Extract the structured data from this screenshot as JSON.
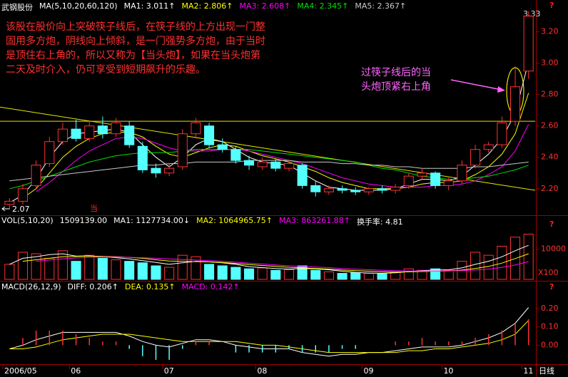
{
  "help": "?",
  "chart_data": [
    {
      "type": "candlestick",
      "title": "武钢股份",
      "subtitle": "MA(5,10,20,60,120)",
      "up_color": "#ff3232",
      "down_color": "#54ffff",
      "categories": [
        "2006/05",
        null,
        null,
        null,
        null,
        "06",
        null,
        null,
        null,
        null,
        null,
        null,
        "07",
        null,
        null,
        null,
        null,
        null,
        null,
        "08",
        null,
        null,
        null,
        null,
        null,
        null,
        null,
        "09",
        null,
        null,
        null,
        null,
        null,
        "10",
        null,
        null,
        null,
        null,
        null,
        "11"
      ],
      "open": [
        2.1,
        2.12,
        2.22,
        2.36,
        2.5,
        2.58,
        2.52,
        2.6,
        2.55,
        2.6,
        2.47,
        2.33,
        2.3,
        2.34,
        2.55,
        2.6,
        2.48,
        2.45,
        2.38,
        2.34,
        2.37,
        2.33,
        2.35,
        2.22,
        2.18,
        2.2,
        2.19,
        2.18,
        2.2,
        2.19,
        2.22,
        2.28,
        2.3,
        2.22,
        2.25,
        2.35,
        2.45,
        2.48,
        2.63,
        2.95
      ],
      "high": [
        2.14,
        2.23,
        2.38,
        2.53,
        2.62,
        2.64,
        2.63,
        2.66,
        2.65,
        2.63,
        2.5,
        2.36,
        2.36,
        2.58,
        2.65,
        2.62,
        2.52,
        2.47,
        2.41,
        2.4,
        2.39,
        2.38,
        2.36,
        2.25,
        2.22,
        2.22,
        2.21,
        2.21,
        2.22,
        2.23,
        2.3,
        2.33,
        2.31,
        2.27,
        2.38,
        2.48,
        2.5,
        2.66,
        2.98,
        3.33
      ],
      "low": [
        2.07,
        2.1,
        2.2,
        2.34,
        2.48,
        2.5,
        2.5,
        2.52,
        2.53,
        2.46,
        2.3,
        2.27,
        2.28,
        2.32,
        2.52,
        2.46,
        2.43,
        2.36,
        2.32,
        2.32,
        2.31,
        2.31,
        2.2,
        2.15,
        2.16,
        2.17,
        2.16,
        2.16,
        2.17,
        2.17,
        2.2,
        2.26,
        2.2,
        2.19,
        2.23,
        2.33,
        2.43,
        2.46,
        2.6,
        2.9
      ],
      "close": [
        2.12,
        2.2,
        2.35,
        2.5,
        2.58,
        2.52,
        2.6,
        2.55,
        2.62,
        2.48,
        2.32,
        2.3,
        2.33,
        2.55,
        2.62,
        2.48,
        2.45,
        2.38,
        2.35,
        2.37,
        2.33,
        2.36,
        2.22,
        2.18,
        2.2,
        2.19,
        2.18,
        2.2,
        2.19,
        2.21,
        2.28,
        2.3,
        2.22,
        2.25,
        2.35,
        2.45,
        2.48,
        2.62,
        2.85,
        3.3
      ],
      "series": [
        {
          "name": "MA1: 3.011↑",
          "color": "#ffffff",
          "values": [
            2.11,
            2.16,
            2.26,
            2.4,
            2.5,
            2.55,
            2.56,
            2.57,
            2.58,
            2.56,
            2.48,
            2.4,
            2.34,
            2.4,
            2.48,
            2.52,
            2.5,
            2.45,
            2.4,
            2.37,
            2.36,
            2.35,
            2.3,
            2.25,
            2.21,
            2.2,
            2.19,
            2.19,
            2.19,
            2.2,
            2.23,
            2.26,
            2.26,
            2.25,
            2.28,
            2.35,
            2.42,
            2.52,
            2.68,
            3.01
          ]
        },
        {
          "name": "MA2: 2.806↑",
          "color": "#ffff00",
          "values": [
            null,
            2.14,
            2.2,
            2.3,
            2.4,
            2.47,
            2.52,
            2.55,
            2.56,
            2.56,
            2.53,
            2.47,
            2.42,
            2.4,
            2.43,
            2.46,
            2.48,
            2.47,
            2.44,
            2.41,
            2.39,
            2.37,
            2.34,
            2.31,
            2.27,
            2.24,
            2.22,
            2.2,
            2.2,
            2.2,
            2.21,
            2.23,
            2.24,
            2.24,
            2.25,
            2.29,
            2.34,
            2.42,
            2.55,
            2.81
          ]
        },
        {
          "name": "MA3: 2.608↑",
          "color": "#ff00ff",
          "values": [
            null,
            null,
            2.18,
            2.24,
            2.31,
            2.38,
            2.44,
            2.48,
            2.52,
            2.53,
            2.52,
            2.49,
            2.46,
            2.44,
            2.44,
            2.44,
            2.45,
            2.45,
            2.44,
            2.42,
            2.4,
            2.38,
            2.36,
            2.33,
            2.3,
            2.27,
            2.25,
            2.23,
            2.22,
            2.21,
            2.21,
            2.21,
            2.22,
            2.22,
            2.23,
            2.25,
            2.29,
            2.34,
            2.44,
            2.61
          ]
        },
        {
          "name": "MA4: 2.345↑",
          "color": "#00e000",
          "values": [
            2.2,
            2.22,
            2.25,
            2.28,
            2.31,
            2.34,
            2.37,
            2.39,
            2.41,
            2.42,
            2.43,
            2.43,
            2.43,
            2.44,
            2.45,
            2.45,
            2.45,
            2.45,
            2.45,
            2.44,
            2.43,
            2.42,
            2.41,
            2.4,
            2.39,
            2.38,
            2.37,
            2.35,
            2.33,
            2.32,
            2.3,
            2.28,
            2.27,
            2.26,
            2.26,
            2.27,
            2.28,
            2.3,
            2.32,
            2.35
          ]
        },
        {
          "name": "MA5: 2.367↑",
          "color": "#c8c8c8",
          "values": [
            2.25,
            2.26,
            2.27,
            2.28,
            2.29,
            2.3,
            2.31,
            2.32,
            2.33,
            2.34,
            2.35,
            2.35,
            2.36,
            2.36,
            2.37,
            2.37,
            2.37,
            2.37,
            2.38,
            2.38,
            2.38,
            2.38,
            2.37,
            2.37,
            2.37,
            2.36,
            2.36,
            2.35,
            2.35,
            2.34,
            2.34,
            2.33,
            2.33,
            2.33,
            2.33,
            2.34,
            2.34,
            2.35,
            2.36,
            2.37
          ]
        }
      ],
      "trendlines": [
        {
          "color": "#e6e600",
          "values": [
            2.72,
            2.19
          ]
        },
        {
          "color": "#e6e600",
          "values": [
            2.63,
            2.63
          ]
        }
      ],
      "ylim": [
        2.04,
        3.38
      ],
      "yticks": [
        {
          "value": 2.2,
          "label": "2.20"
        },
        {
          "value": 2.4,
          "label": "2.40"
        },
        {
          "value": 2.6,
          "label": "2.60"
        },
        {
          "value": 2.8,
          "label": "2.80"
        },
        {
          "value": 3.0,
          "label": "3.00"
        },
        {
          "value": 3.2,
          "label": "3.20"
        }
      ],
      "high_label": 3.33,
      "low_label": 2.07,
      "signal_label": "当",
      "annotation": [
        "该股在股价向上突破筷子线后，在筷子线的上方出现一门整",
        "固用多方炮，阴线向上倾斜，是一门强势多方炮，由于当时",
        "是顶住右上角的，所以又称为【当头炮】，如果在当头炮第",
        "二天及时介入，仍可享受到短期飙升的乐趣。"
      ],
      "callout": [
        "过筷子线后的当",
        "头炮顶紧右上角"
      ]
    },
    {
      "type": "bar",
      "title": "VOL(5,10,20)",
      "total": "1509139.00",
      "turnover": "换手率: 4.81",
      "unit": "X100",
      "values": [
        5000,
        9000,
        8500,
        7000,
        9500,
        6000,
        8000,
        7000,
        6500,
        6000,
        5500,
        4500,
        4000,
        8000,
        7500,
        5000,
        4500,
        4000,
        3500,
        3800,
        3000,
        3200,
        4500,
        3000,
        2500,
        2000,
        2200,
        2000,
        1800,
        2500,
        3500,
        3000,
        3500,
        3000,
        6000,
        9000,
        8000,
        11000,
        14000,
        15000
      ],
      "series": [
        {
          "name": "MA1: 1127734.00↓",
          "color": "#ffffff",
          "values": [
            5000,
            7000,
            7500,
            8200,
            8500,
            7700,
            7800,
            7500,
            7200,
            6800,
            6200,
            5600,
            5000,
            5500,
            6000,
            5800,
            5500,
            5000,
            4200,
            3900,
            3600,
            3400,
            3600,
            3500,
            3200,
            2700,
            2300,
            2100,
            2000,
            2200,
            2600,
            2900,
            3100,
            3200,
            3800,
            5000,
            6000,
            7500,
            9500,
            11300
          ]
        },
        {
          "name": "MA2: 1064965.75↑",
          "color": "#ffff00",
          "values": [
            null,
            6000,
            6500,
            7000,
            7500,
            7600,
            7700,
            7600,
            7500,
            7300,
            7000,
            6500,
            6100,
            6000,
            5900,
            5800,
            5600,
            5300,
            4900,
            4600,
            4300,
            4000,
            3800,
            3600,
            3400,
            3100,
            2900,
            2700,
            2500,
            2400,
            2500,
            2600,
            2700,
            2800,
            3100,
            3600,
            4300,
            5400,
            6900,
            8500
          ]
        },
        {
          "name": "MA3: 863261.88↑",
          "color": "#ff00ff",
          "values": [
            null,
            null,
            6000,
            6400,
            6800,
            7100,
            7300,
            7400,
            7400,
            7300,
            7200,
            7000,
            6800,
            6600,
            6400,
            6200,
            6000,
            5700,
            5400,
            5100,
            4800,
            4500,
            4300,
            4100,
            3900,
            3600,
            3400,
            3200,
            3000,
            2900,
            2800,
            2800,
            2800,
            2800,
            2900,
            3100,
            3400,
            4000,
            4800,
            5900
          ]
        }
      ],
      "ylim": [
        0,
        17500
      ],
      "yticks": [
        10000
      ]
    },
    {
      "type": "macd",
      "title": "MACD(26,12,9)",
      "x_label": "日线",
      "series": [
        {
          "name": "DIFF: 0.206↑",
          "color": "#ffffff",
          "values": [
            -0.02,
            0.0,
            0.03,
            0.05,
            0.07,
            0.07,
            0.07,
            0.07,
            0.07,
            0.05,
            0.02,
            0.0,
            -0.01,
            0.01,
            0.03,
            0.03,
            0.02,
            0.0,
            -0.01,
            -0.02,
            -0.02,
            -0.02,
            -0.04,
            -0.05,
            -0.06,
            -0.05,
            -0.05,
            -0.04,
            -0.04,
            -0.03,
            -0.02,
            -0.01,
            -0.01,
            -0.01,
            0.0,
            0.02,
            0.04,
            0.07,
            0.12,
            0.206
          ]
        },
        {
          "name": "DEA: 0.135↑",
          "color": "#ffff00",
          "values": [
            -0.02,
            -0.02,
            -0.01,
            0.01,
            0.03,
            0.04,
            0.05,
            0.06,
            0.06,
            0.06,
            0.05,
            0.04,
            0.03,
            0.02,
            0.02,
            0.02,
            0.02,
            0.02,
            0.01,
            0.0,
            0.0,
            -0.01,
            -0.02,
            -0.03,
            -0.04,
            -0.04,
            -0.04,
            -0.04,
            -0.04,
            -0.04,
            -0.03,
            -0.03,
            -0.02,
            -0.02,
            -0.01,
            0.0,
            0.01,
            0.03,
            0.06,
            0.135
          ]
        },
        {
          "name": "MACD: 0.142↑",
          "color": "#ff00ff",
          "style": "bar",
          "values": [
            0,
            0.04,
            0.08,
            0.08,
            0.08,
            0.06,
            0.04,
            0.02,
            0.02,
            -0.02,
            -0.06,
            -0.08,
            -0.08,
            -0.02,
            0.02,
            0.02,
            0,
            -0.04,
            -0.04,
            -0.04,
            -0.04,
            -0.02,
            -0.04,
            -0.04,
            -0.04,
            -0.02,
            -0.02,
            0,
            0,
            0.02,
            0.02,
            0.04,
            0.02,
            0.02,
            0.02,
            0.04,
            0.06,
            0.08,
            0.12,
            0.142
          ]
        }
      ],
      "ylim": [
        -0.1,
        0.29
      ],
      "yticks": [
        {
          "value": 0,
          "label": "0.00"
        },
        {
          "value": 0.1,
          "label": "0.10"
        },
        {
          "value": 0.2,
          "label": "0.20"
        }
      ]
    }
  ]
}
